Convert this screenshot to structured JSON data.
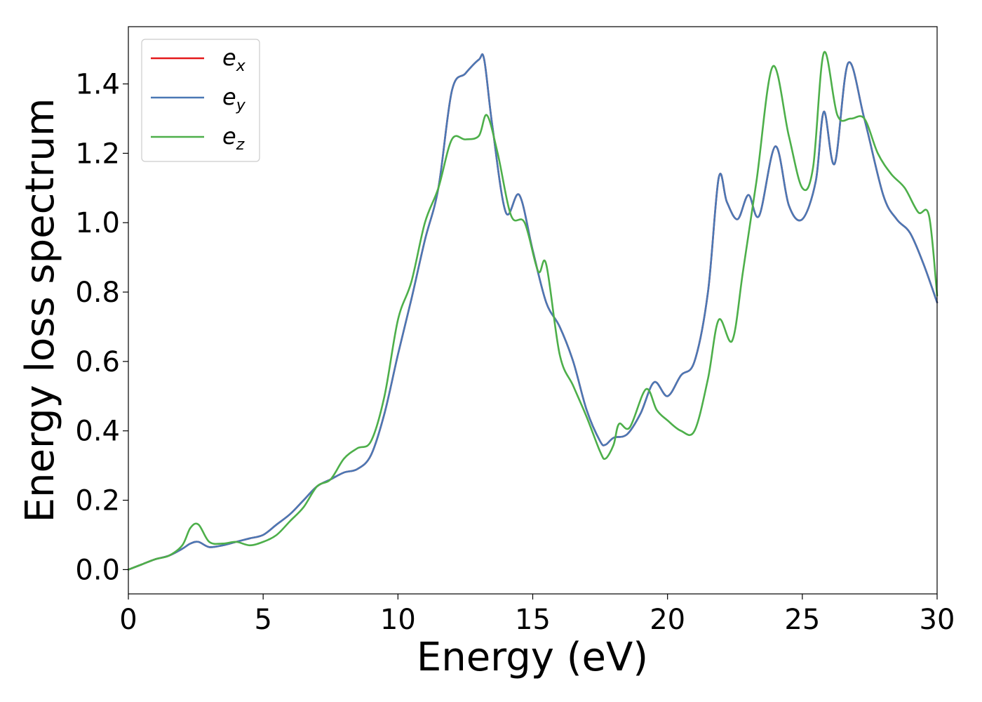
{
  "chart_data": {
    "type": "line",
    "xlabel": "Energy (eV)",
    "ylabel": "Energy loss spectrum",
    "xlim": [
      0,
      30
    ],
    "ylim": [
      -0.07,
      1.565
    ],
    "xticks": [
      0,
      5,
      10,
      15,
      20,
      25,
      30
    ],
    "xtick_labels": [
      "0",
      "5",
      "10",
      "15",
      "20",
      "25",
      "30"
    ],
    "yticks": [
      0.0,
      0.2,
      0.4,
      0.6,
      0.8,
      1.0,
      1.2,
      1.4
    ],
    "ytick_labels": [
      "0.0",
      "0.2",
      "0.4",
      "0.6",
      "0.8",
      "1.0",
      "1.2",
      "1.4"
    ],
    "grid": false,
    "legend_position": "top-left",
    "series": [
      {
        "name": "e_x",
        "legend_base": "e",
        "legend_sub": "x",
        "color": "#e41a1c",
        "x": [
          0,
          0.5,
          1,
          1.5,
          2,
          2.3,
          2.6,
          3,
          3.5,
          4,
          4.5,
          5,
          5.5,
          6,
          6.5,
          7,
          7.5,
          8,
          8.5,
          9,
          9.5,
          10,
          10.5,
          11,
          11.5,
          12,
          12.5,
          13,
          13.2,
          13.5,
          14,
          14.5,
          15,
          15.5,
          16,
          16.5,
          17,
          17.5,
          17.7,
          18,
          18.5,
          19,
          19.5,
          20,
          20.5,
          21,
          21.5,
          21.9,
          22.2,
          22.6,
          23,
          23.4,
          24,
          24.5,
          25,
          25.5,
          25.8,
          26.2,
          26.7,
          27.3,
          28,
          28.5,
          29,
          29.5,
          30
        ],
        "y": [
          0.0,
          0.015,
          0.03,
          0.04,
          0.06,
          0.075,
          0.08,
          0.065,
          0.07,
          0.08,
          0.09,
          0.1,
          0.13,
          0.16,
          0.2,
          0.24,
          0.26,
          0.28,
          0.29,
          0.33,
          0.45,
          0.62,
          0.78,
          0.95,
          1.1,
          1.38,
          1.43,
          1.47,
          1.47,
          1.28,
          1.03,
          1.08,
          0.92,
          0.77,
          0.7,
          0.6,
          0.46,
          0.37,
          0.36,
          0.38,
          0.39,
          0.45,
          0.54,
          0.5,
          0.56,
          0.6,
          0.8,
          1.13,
          1.06,
          1.01,
          1.08,
          1.02,
          1.22,
          1.05,
          1.01,
          1.12,
          1.32,
          1.17,
          1.46,
          1.3,
          1.08,
          1.01,
          0.97,
          0.88,
          0.77
        ]
      },
      {
        "name": "e_y",
        "legend_base": "e",
        "legend_sub": "y",
        "color": "#4a78b5",
        "x": [
          0,
          0.5,
          1,
          1.5,
          2,
          2.3,
          2.6,
          3,
          3.5,
          4,
          4.5,
          5,
          5.5,
          6,
          6.5,
          7,
          7.5,
          8,
          8.5,
          9,
          9.5,
          10,
          10.5,
          11,
          11.5,
          12,
          12.5,
          13,
          13.2,
          13.5,
          14,
          14.5,
          15,
          15.5,
          16,
          16.5,
          17,
          17.5,
          17.7,
          18,
          18.5,
          19,
          19.5,
          20,
          20.5,
          21,
          21.5,
          21.9,
          22.2,
          22.6,
          23,
          23.4,
          24,
          24.5,
          25,
          25.5,
          25.8,
          26.2,
          26.7,
          27.3,
          28,
          28.5,
          29,
          29.5,
          30
        ],
        "y": [
          0.0,
          0.015,
          0.03,
          0.04,
          0.06,
          0.075,
          0.08,
          0.065,
          0.07,
          0.08,
          0.09,
          0.1,
          0.13,
          0.16,
          0.2,
          0.24,
          0.26,
          0.28,
          0.29,
          0.33,
          0.45,
          0.62,
          0.78,
          0.95,
          1.1,
          1.38,
          1.43,
          1.47,
          1.47,
          1.28,
          1.03,
          1.08,
          0.92,
          0.77,
          0.7,
          0.6,
          0.46,
          0.37,
          0.36,
          0.38,
          0.39,
          0.45,
          0.54,
          0.5,
          0.56,
          0.6,
          0.8,
          1.13,
          1.06,
          1.01,
          1.08,
          1.02,
          1.22,
          1.05,
          1.01,
          1.12,
          1.32,
          1.17,
          1.46,
          1.3,
          1.08,
          1.01,
          0.97,
          0.88,
          0.77
        ]
      },
      {
        "name": "e_z",
        "legend_base": "e",
        "legend_sub": "z",
        "color": "#4daf4a",
        "x": [
          0,
          0.5,
          1,
          1.5,
          2,
          2.3,
          2.6,
          3,
          3.5,
          4,
          4.5,
          5,
          5.5,
          6,
          6.5,
          7,
          7.5,
          8,
          8.5,
          9,
          9.5,
          10,
          10.5,
          11,
          11.5,
          12,
          12.5,
          13,
          13.3,
          13.7,
          14.2,
          14.7,
          15.2,
          15.5,
          16,
          16.5,
          17,
          17.5,
          17.7,
          18,
          18.2,
          18.6,
          19.2,
          19.6,
          20,
          20.5,
          21,
          21.5,
          21.9,
          22.4,
          22.8,
          23.3,
          23.9,
          24.5,
          25,
          25.4,
          25.8,
          26.3,
          26.8,
          27.3,
          27.8,
          28.3,
          28.8,
          29.3,
          29.7,
          30
        ],
        "y": [
          0.0,
          0.015,
          0.03,
          0.04,
          0.07,
          0.12,
          0.13,
          0.08,
          0.075,
          0.08,
          0.07,
          0.08,
          0.1,
          0.14,
          0.18,
          0.24,
          0.26,
          0.32,
          0.35,
          0.37,
          0.5,
          0.72,
          0.83,
          1.0,
          1.1,
          1.24,
          1.24,
          1.25,
          1.31,
          1.2,
          1.02,
          1.0,
          0.86,
          0.88,
          0.62,
          0.53,
          0.44,
          0.34,
          0.32,
          0.36,
          0.42,
          0.41,
          0.52,
          0.46,
          0.43,
          0.4,
          0.4,
          0.55,
          0.72,
          0.66,
          0.86,
          1.12,
          1.45,
          1.25,
          1.1,
          1.16,
          1.49,
          1.31,
          1.3,
          1.3,
          1.2,
          1.14,
          1.1,
          1.03,
          1.02,
          0.79
        ]
      }
    ]
  }
}
